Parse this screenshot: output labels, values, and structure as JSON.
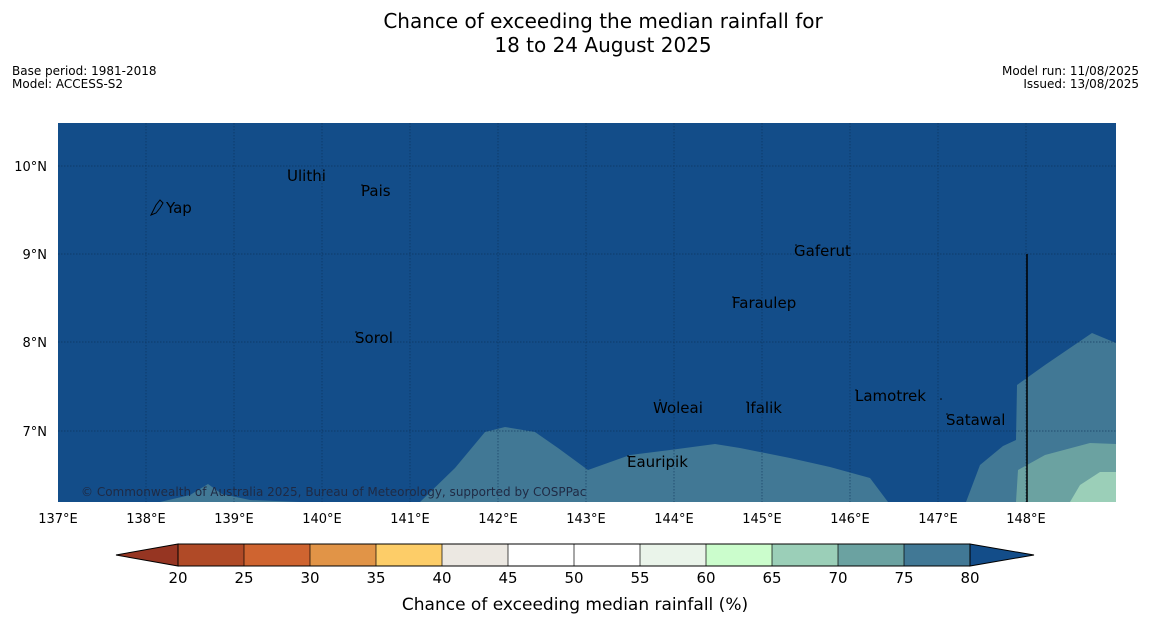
{
  "title": {
    "line1": "Chance of exceeding the median rainfall for",
    "line2": "18 to 24 August 2025"
  },
  "meta_left": {
    "base_period": "Base period: 1981-2018",
    "model": "Model: ACCESS-S2"
  },
  "meta_right": {
    "model_run": "Model run: 11/08/2025",
    "issued": "Issued: 13/08/2025"
  },
  "map": {
    "lat_labels": [
      "10°N",
      "9°N",
      "8°N",
      "7°N"
    ],
    "lon_labels": [
      "137°E",
      "138°E",
      "139°E",
      "140°E",
      "141°E",
      "142°E",
      "143°E",
      "144°E",
      "145°E",
      "146°E",
      "147°E",
      "148°E"
    ],
    "places": [
      "Ulithi",
      "Pais",
      "Yap",
      "Gaferut",
      "Faraulep",
      "Sorol",
      "Lamotrek",
      "Woleai",
      "Ifalik",
      "Satawal",
      "Eauripik"
    ],
    "copyright": "© Commonwealth of Australia 2025, Bureau of Meteorology, supported by COSPPac",
    "colors": {
      "ocean_above_80": "#134d89",
      "band_75_80": "#417895",
      "band_70_75": "#6ba2a1",
      "band_65_70": "#9bcfb8"
    }
  },
  "colorbar": {
    "ticks": [
      "20",
      "25",
      "30",
      "35",
      "40",
      "45",
      "50",
      "55",
      "60",
      "65",
      "70",
      "75",
      "80"
    ],
    "label": "Chance of exceeding median rainfall (%)",
    "colors": {
      "below": "#963522",
      "20-25": "#b04a27",
      "25-30": "#cf6430",
      "30-35": "#e19447",
      "35-40": "#fdcd68",
      "40-45": "#ece8e2",
      "45-50": "#ffffff",
      "50-55": "#ffffff",
      "55-60": "#eaf4ea",
      "60-65": "#cbfdcc",
      "65-70": "#9bcfb8",
      "70-75": "#6ba2a1",
      "75-80": "#417895",
      "above": "#134d89"
    }
  }
}
